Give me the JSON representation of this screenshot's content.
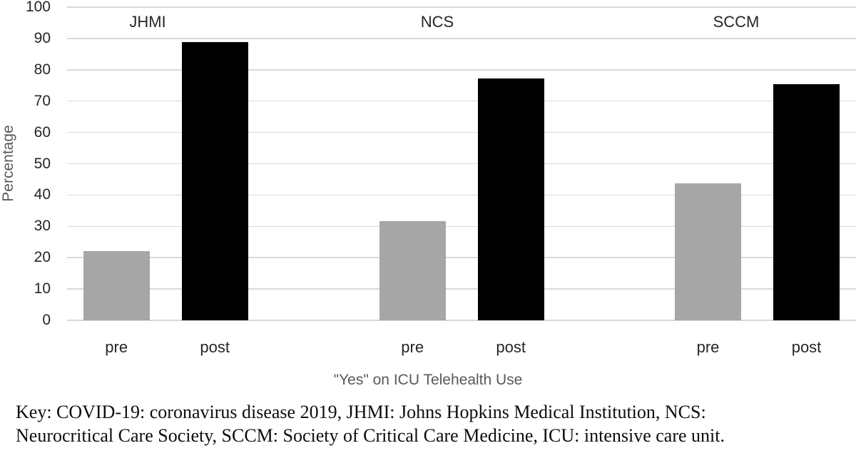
{
  "chart_data": {
    "type": "bar",
    "title": "",
    "ylabel": "Percentage",
    "xlabel": "\"Yes\" on ICU Telehealth Use",
    "ylim": [
      0,
      100
    ],
    "yticks": [
      0,
      10,
      20,
      30,
      40,
      50,
      60,
      70,
      80,
      90,
      100
    ],
    "grid": "horizontal",
    "legend_position": "none",
    "groups": [
      "JHMI",
      "NCS",
      "SCCM"
    ],
    "bar_categories": [
      "pre",
      "post"
    ],
    "series": [
      {
        "name": "pre",
        "color": "#a6a6a6",
        "values": [
          22.0,
          31.6,
          43.8
        ]
      },
      {
        "name": "post",
        "color": "#000000",
        "values": [
          88.9,
          77.3,
          75.5
        ]
      }
    ]
  },
  "footnote": {
    "lines": [
      "Key: COVID-19: coronavirus disease 2019, JHMI: Johns Hopkins Medical Institution, NCS:",
      "Neurocritical Care Society, SCCM: Society of Critical Care Medicine, ICU: intensive care unit."
    ]
  },
  "colors": {
    "pre_bar": "#a6a6a6",
    "post_bar": "#000000",
    "gridline": "#d9d9d9",
    "tick_label": "#262626",
    "axis_title": "#595959",
    "background": "#ffffff"
  }
}
